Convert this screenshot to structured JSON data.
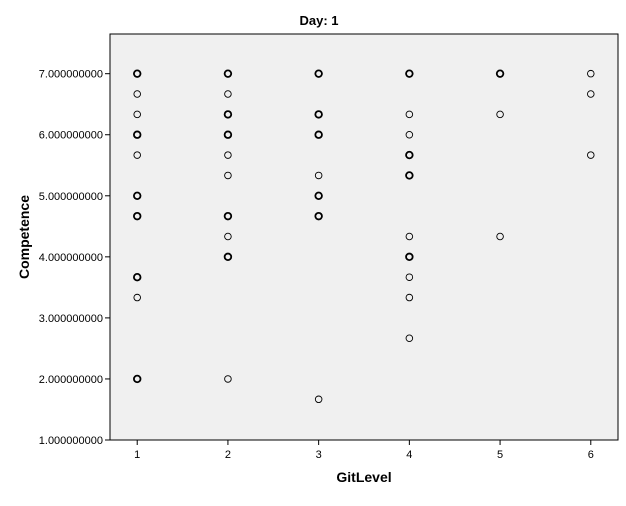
{
  "chart_data": {
    "type": "scatter",
    "title": "Day: 1",
    "xlabel": "GitLevel",
    "ylabel": "Competence",
    "xlim": [
      0.7,
      6.3
    ],
    "ylim": [
      1.0,
      7.65
    ],
    "x_ticks": [
      {
        "value": 1,
        "label": "1"
      },
      {
        "value": 2,
        "label": "2"
      },
      {
        "value": 3,
        "label": "3"
      },
      {
        "value": 4,
        "label": "4"
      },
      {
        "value": 5,
        "label": "5"
      },
      {
        "value": 6,
        "label": "6"
      }
    ],
    "y_ticks": [
      {
        "value": 1,
        "label": "1.000000000"
      },
      {
        "value": 2,
        "label": "2.000000000"
      },
      {
        "value": 3,
        "label": "3.000000000"
      },
      {
        "value": 4,
        "label": "4.000000000"
      },
      {
        "value": 5,
        "label": "5.000000000"
      },
      {
        "value": 6,
        "label": "6.000000000"
      },
      {
        "value": 7,
        "label": "7.000000000"
      }
    ],
    "grid": false,
    "plot_background": "#f0f0f0",
    "marker_color": "#000000",
    "points": [
      {
        "x": 1,
        "y": 7.0,
        "bold": true
      },
      {
        "x": 1,
        "y": 6.6667,
        "bold": false
      },
      {
        "x": 1,
        "y": 6.3333,
        "bold": false
      },
      {
        "x": 1,
        "y": 6.0,
        "bold": true
      },
      {
        "x": 1,
        "y": 5.6667,
        "bold": false
      },
      {
        "x": 1,
        "y": 5.0,
        "bold": true
      },
      {
        "x": 1,
        "y": 4.6667,
        "bold": true
      },
      {
        "x": 1,
        "y": 3.6667,
        "bold": true
      },
      {
        "x": 1,
        "y": 3.3333,
        "bold": false
      },
      {
        "x": 1,
        "y": 2.0,
        "bold": true
      },
      {
        "x": 2,
        "y": 7.0,
        "bold": true
      },
      {
        "x": 2,
        "y": 6.6667,
        "bold": false
      },
      {
        "x": 2,
        "y": 6.3333,
        "bold": true
      },
      {
        "x": 2,
        "y": 6.0,
        "bold": true
      },
      {
        "x": 2,
        "y": 5.6667,
        "bold": false
      },
      {
        "x": 2,
        "y": 5.3333,
        "bold": false
      },
      {
        "x": 2,
        "y": 4.6667,
        "bold": true
      },
      {
        "x": 2,
        "y": 4.3333,
        "bold": false
      },
      {
        "x": 2,
        "y": 4.0,
        "bold": true
      },
      {
        "x": 2,
        "y": 2.0,
        "bold": false
      },
      {
        "x": 3,
        "y": 7.0,
        "bold": true
      },
      {
        "x": 3,
        "y": 6.3333,
        "bold": true
      },
      {
        "x": 3,
        "y": 6.0,
        "bold": true
      },
      {
        "x": 3,
        "y": 5.3333,
        "bold": false
      },
      {
        "x": 3,
        "y": 5.0,
        "bold": true
      },
      {
        "x": 3,
        "y": 4.6667,
        "bold": true
      },
      {
        "x": 3,
        "y": 1.6667,
        "bold": false
      },
      {
        "x": 4,
        "y": 7.0,
        "bold": true
      },
      {
        "x": 4,
        "y": 6.3333,
        "bold": false
      },
      {
        "x": 4,
        "y": 6.0,
        "bold": false
      },
      {
        "x": 4,
        "y": 5.6667,
        "bold": true
      },
      {
        "x": 4,
        "y": 5.3333,
        "bold": true
      },
      {
        "x": 4,
        "y": 4.3333,
        "bold": false
      },
      {
        "x": 4,
        "y": 4.0,
        "bold": true
      },
      {
        "x": 4,
        "y": 3.6667,
        "bold": false
      },
      {
        "x": 4,
        "y": 3.3333,
        "bold": false
      },
      {
        "x": 4,
        "y": 2.6667,
        "bold": false
      },
      {
        "x": 5,
        "y": 7.0,
        "bold": true
      },
      {
        "x": 5,
        "y": 6.3333,
        "bold": false
      },
      {
        "x": 5,
        "y": 4.3333,
        "bold": false
      },
      {
        "x": 6,
        "y": 7.0,
        "bold": false
      },
      {
        "x": 6,
        "y": 6.6667,
        "bold": false
      },
      {
        "x": 6,
        "y": 5.6667,
        "bold": false
      }
    ]
  }
}
